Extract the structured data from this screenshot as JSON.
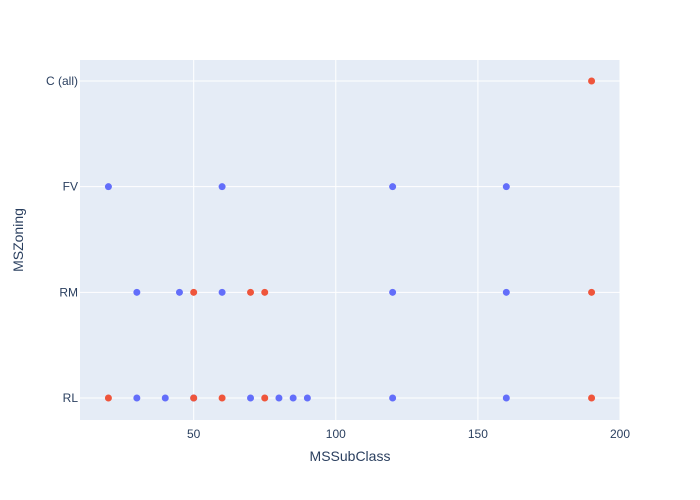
{
  "chart_data": {
    "type": "scatter",
    "xlabel": "MSSubClass",
    "ylabel": "MSZoning",
    "xlim": [
      10,
      200
    ],
    "x_ticks": [
      50,
      100,
      150,
      200
    ],
    "y_categories": [
      "RL",
      "RM",
      "FV",
      "C (all)"
    ],
    "grid": true,
    "legend": "none",
    "colors": {
      "plot_bg": "#e5ecf6",
      "grid": "#ffffff",
      "text": "#2a3f5f"
    },
    "series": [
      {
        "color": "#636efa",
        "points": [
          {
            "x": 20,
            "y": "FV"
          },
          {
            "x": 60,
            "y": "FV"
          },
          {
            "x": 120,
            "y": "FV"
          },
          {
            "x": 160,
            "y": "FV"
          },
          {
            "x": 30,
            "y": "RM"
          },
          {
            "x": 45,
            "y": "RM"
          },
          {
            "x": 60,
            "y": "RM"
          },
          {
            "x": 120,
            "y": "RM"
          },
          {
            "x": 160,
            "y": "RM"
          },
          {
            "x": 30,
            "y": "RL"
          },
          {
            "x": 40,
            "y": "RL"
          },
          {
            "x": 50,
            "y": "RL"
          },
          {
            "x": 70,
            "y": "RL"
          },
          {
            "x": 80,
            "y": "RL"
          },
          {
            "x": 85,
            "y": "RL"
          },
          {
            "x": 90,
            "y": "RL"
          },
          {
            "x": 120,
            "y": "RL"
          },
          {
            "x": 160,
            "y": "RL"
          }
        ]
      },
      {
        "color": "#ef553b",
        "points": [
          {
            "x": 190,
            "y": "C (all)"
          },
          {
            "x": 50,
            "y": "RM"
          },
          {
            "x": 70,
            "y": "RM"
          },
          {
            "x": 75,
            "y": "RM"
          },
          {
            "x": 190,
            "y": "RM"
          },
          {
            "x": 20,
            "y": "RL"
          },
          {
            "x": 50,
            "y": "RL"
          },
          {
            "x": 60,
            "y": "RL"
          },
          {
            "x": 75,
            "y": "RL"
          },
          {
            "x": 190,
            "y": "RL"
          }
        ]
      }
    ]
  }
}
